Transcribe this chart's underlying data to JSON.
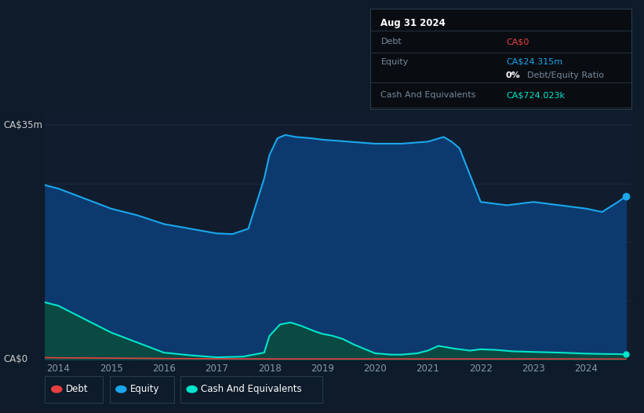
{
  "background_color": "#0d1b2a",
  "plot_bg_color": "#111d2e",
  "grid_color": "#1e3050",
  "title_label": "CA$35m",
  "zero_label": "CA$0",
  "x_ticks": [
    2014,
    2015,
    2016,
    2017,
    2018,
    2019,
    2020,
    2021,
    2022,
    2023,
    2024
  ],
  "equity_color": "#1aa7ec",
  "equity_fill_color": "#0d3a6e",
  "debt_color": "#e84040",
  "cash_color": "#00e5cc",
  "cash_fill_color": "#0a4a42",
  "equity_data": {
    "years": [
      2013.75,
      2014.0,
      2014.5,
      2015.0,
      2015.5,
      2016.0,
      2016.5,
      2017.0,
      2017.3,
      2017.6,
      2017.9,
      2018.0,
      2018.15,
      2018.3,
      2018.5,
      2018.8,
      2019.0,
      2019.5,
      2020.0,
      2020.5,
      2021.0,
      2021.3,
      2021.45,
      2021.6,
      2022.0,
      2022.5,
      2023.0,
      2023.5,
      2024.0,
      2024.3,
      2024.6,
      2024.75
    ],
    "values": [
      26.0,
      25.5,
      24.0,
      22.5,
      21.5,
      20.2,
      19.5,
      18.8,
      18.7,
      19.5,
      27.0,
      30.5,
      33.0,
      33.5,
      33.2,
      33.0,
      32.8,
      32.5,
      32.2,
      32.2,
      32.5,
      33.2,
      32.5,
      31.5,
      23.5,
      23.0,
      23.5,
      23.0,
      22.5,
      22.0,
      23.5,
      24.3
    ]
  },
  "debt_data": {
    "years": [
      2013.75,
      2014.0,
      2015.0,
      2016.0,
      2017.0,
      2018.0,
      2019.0,
      2020.0,
      2021.0,
      2022.0,
      2023.0,
      2024.0,
      2024.75
    ],
    "values": [
      0.25,
      0.22,
      0.18,
      0.12,
      0.08,
      0.05,
      0.05,
      0.05,
      0.05,
      0.05,
      0.05,
      0.04,
      0.02
    ]
  },
  "cash_data": {
    "years": [
      2013.75,
      2014.0,
      2014.5,
      2015.0,
      2015.5,
      2016.0,
      2016.5,
      2017.0,
      2017.5,
      2017.9,
      2018.0,
      2018.2,
      2018.4,
      2018.6,
      2018.85,
      2019.0,
      2019.2,
      2019.4,
      2019.6,
      2020.0,
      2020.3,
      2020.5,
      2020.8,
      2021.0,
      2021.2,
      2021.5,
      2021.8,
      2022.0,
      2022.3,
      2022.6,
      2023.0,
      2023.5,
      2024.0,
      2024.3,
      2024.6,
      2024.75
    ],
    "values": [
      8.5,
      8.0,
      6.0,
      4.0,
      2.5,
      1.0,
      0.6,
      0.3,
      0.4,
      1.0,
      3.5,
      5.2,
      5.5,
      5.0,
      4.2,
      3.8,
      3.5,
      3.0,
      2.2,
      0.9,
      0.7,
      0.7,
      0.9,
      1.3,
      2.0,
      1.6,
      1.3,
      1.5,
      1.4,
      1.2,
      1.1,
      1.0,
      0.85,
      0.8,
      0.78,
      0.72
    ]
  },
  "ylim": [
    0,
    37
  ],
  "xlim": [
    2013.75,
    2024.85
  ],
  "yticks": [
    0,
    8.75,
    17.5,
    26.25,
    35
  ],
  "tooltip": {
    "date": "Aug 31 2024",
    "debt_label": "Debt",
    "debt_value": "CA$0",
    "equity_label": "Equity",
    "equity_value": "CA$24.315m",
    "ratio_value": "0%",
    "ratio_label": "Debt/Equity Ratio",
    "cash_label": "Cash And Equivalents",
    "cash_value": "CA$724.023k"
  },
  "legend_items": [
    {
      "label": "Debt",
      "color": "#e84040"
    },
    {
      "label": "Equity",
      "color": "#1aa7ec"
    },
    {
      "label": "Cash And Equivalents",
      "color": "#00e5cc"
    }
  ]
}
